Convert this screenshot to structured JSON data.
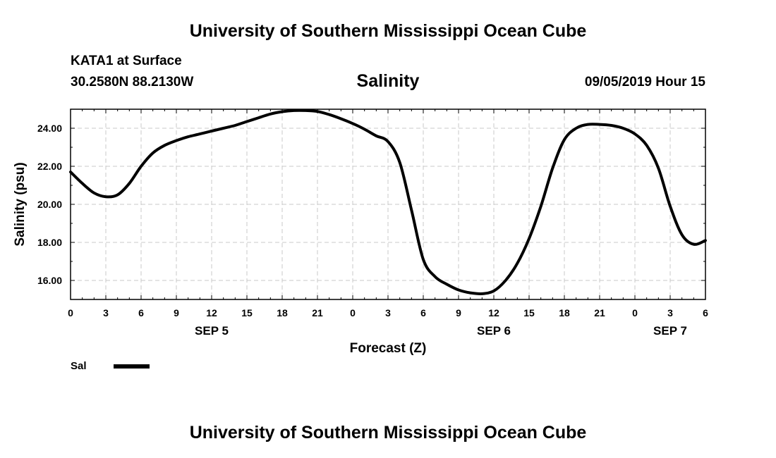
{
  "header": {
    "title": "University of Southern Mississippi Ocean Cube",
    "station": "KATA1 at Surface",
    "coords": "30.2580N 88.2130W",
    "variable": "Salinity",
    "datetime": "09/05/2019 Hour 15"
  },
  "footer": {
    "title": "University of Southern Mississippi Ocean Cube"
  },
  "chart_data": {
    "type": "line",
    "xlabel": "Forecast (Z)",
    "ylabel": "Salinity (psu)",
    "x_unit": "hours since SEP 5 00Z",
    "xlim": [
      0,
      54
    ],
    "ylim": [
      15,
      25
    ],
    "grid": true,
    "x_tick_labels": [
      "0",
      "3",
      "6",
      "9",
      "12",
      "15",
      "18",
      "21",
      "0",
      "3",
      "6",
      "9",
      "12",
      "15",
      "18",
      "21",
      "0",
      "3",
      "6"
    ],
    "y_ticks": [
      16,
      18,
      20,
      22,
      24
    ],
    "y_tick_labels": [
      "16.00",
      "18.00",
      "20.00",
      "22.00",
      "24.00"
    ],
    "date_labels": [
      {
        "text": "SEP 5",
        "hour": 12
      },
      {
        "text": "SEP 6",
        "hour": 36
      },
      {
        "text": "SEP 7",
        "hour": 51
      }
    ],
    "legend": {
      "position": "bottom-left",
      "label": "Sal",
      "color": "#000000"
    },
    "series": [
      {
        "name": "Sal",
        "color": "#000000",
        "x": [
          0,
          1,
          2,
          3,
          4,
          5,
          6,
          7,
          8,
          9,
          10,
          11,
          12,
          13,
          14,
          15,
          16,
          17,
          18,
          19,
          20,
          21,
          22,
          23,
          24,
          25,
          26,
          27,
          28,
          29,
          30,
          31,
          32,
          33,
          34,
          35,
          36,
          37,
          38,
          39,
          40,
          41,
          42,
          43,
          44,
          45,
          46,
          47,
          48,
          49,
          50,
          51,
          52,
          53,
          54
        ],
        "y": [
          21.7,
          21.1,
          20.6,
          20.4,
          20.5,
          21.1,
          22.0,
          22.7,
          23.1,
          23.35,
          23.55,
          23.7,
          23.85,
          24.0,
          24.15,
          24.35,
          24.55,
          24.75,
          24.87,
          24.93,
          24.93,
          24.88,
          24.72,
          24.5,
          24.25,
          23.95,
          23.6,
          23.3,
          22.2,
          19.7,
          17.1,
          16.2,
          15.8,
          15.5,
          15.35,
          15.3,
          15.45,
          16.0,
          16.9,
          18.2,
          19.9,
          21.9,
          23.4,
          24.0,
          24.2,
          24.2,
          24.15,
          24.0,
          23.7,
          23.1,
          21.9,
          19.9,
          18.4,
          17.9,
          18.1
        ]
      }
    ]
  }
}
